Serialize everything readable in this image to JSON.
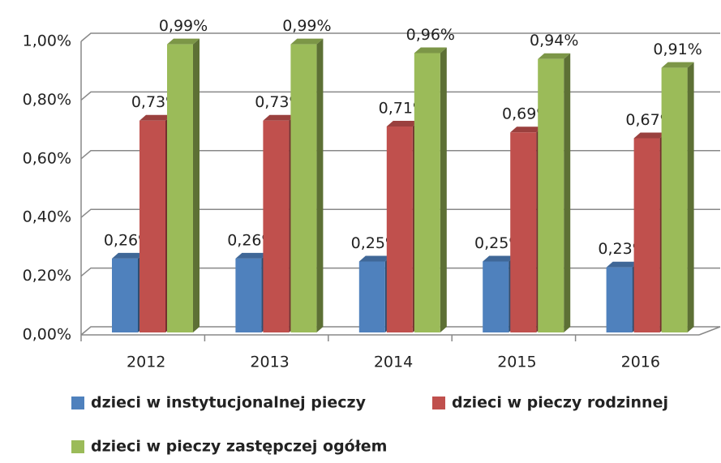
{
  "chart_data": {
    "type": "bar3d",
    "categories": [
      "2012",
      "2013",
      "2014",
      "2015",
      "2016"
    ],
    "series": [
      {
        "name": "dzieci w instytucjonalnej pieczy",
        "color": "#4f81bd",
        "values": [
          0.26,
          0.26,
          0.25,
          0.25,
          0.23
        ],
        "value_labels": [
          "0,26%",
          "0,26%",
          "0,25%",
          "0,25%",
          "0,23%"
        ]
      },
      {
        "name": "dzieci w pieczy rodzinnej",
        "color": "#c0504d",
        "values": [
          0.73,
          0.73,
          0.71,
          0.69,
          0.67
        ],
        "value_labels": [
          "0,73%",
          "0,73%",
          "0,71%",
          "0,69%",
          "0,67%"
        ]
      },
      {
        "name": "dzieci w pieczy zastępczej ogółem",
        "color": "#9bbb59",
        "values": [
          0.99,
          0.99,
          0.96,
          0.94,
          0.91
        ],
        "value_labels": [
          "0,99%",
          "0,99%",
          "0,96%",
          "0,94%",
          "0,91%"
        ]
      }
    ],
    "ylim": [
      0,
      1
    ],
    "yticks": [
      {
        "value": 0,
        "label": "0,00%"
      },
      {
        "value": 0.2,
        "label": "0,20%"
      },
      {
        "value": 0.4,
        "label": "0,40%"
      },
      {
        "value": 0.6,
        "label": "0,60%"
      },
      {
        "value": 0.8,
        "label": "0,80%"
      },
      {
        "value": 1,
        "label": "1,00%"
      }
    ],
    "grid": true
  }
}
